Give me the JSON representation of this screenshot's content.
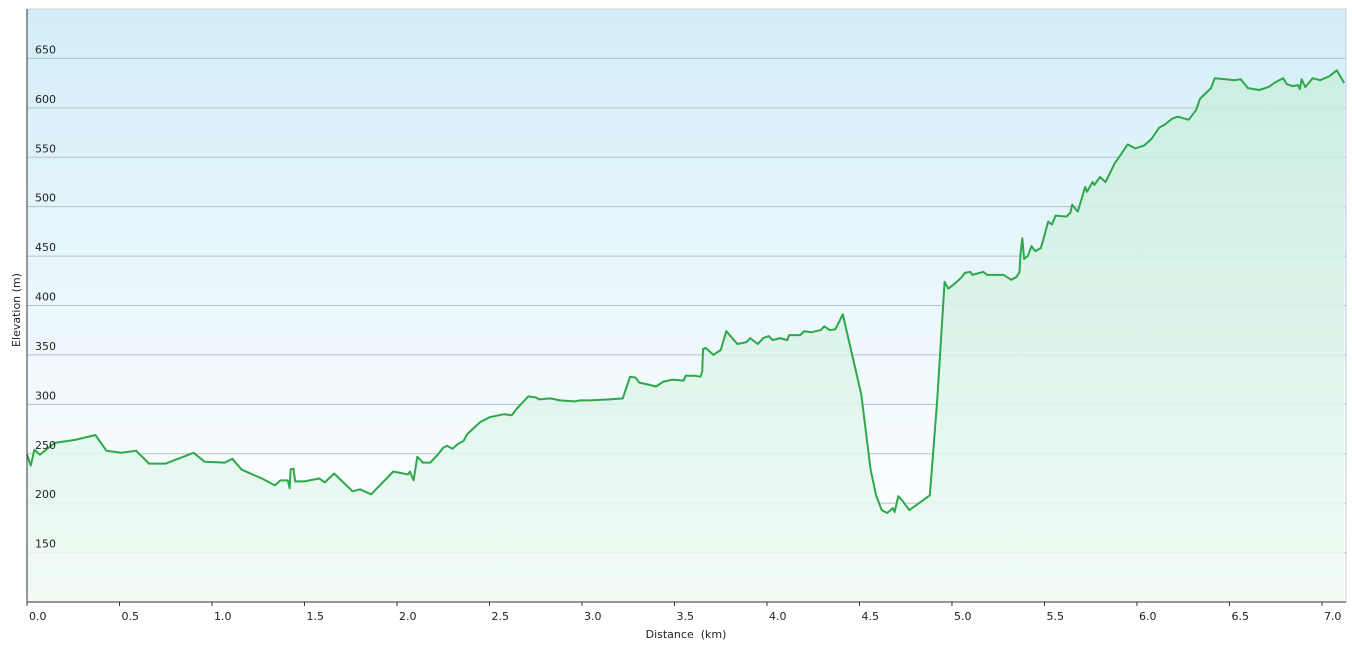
{
  "chart_data": {
    "type": "area",
    "x_label": "Distance  (km)",
    "y_label": "Elevation (m)",
    "color": "#2da84a",
    "grid": true,
    "xlim": [
      0,
      7.13
    ],
    "ylim": [
      100,
      700
    ],
    "xticks": [
      {
        "value": 0,
        "label": "0.0"
      },
      0.5,
      {
        "value": 1,
        "label": "1.0"
      },
      1.5,
      {
        "value": 2,
        "label": "2.0"
      },
      2.5,
      {
        "value": 3,
        "label": "3.0"
      },
      3.5,
      {
        "value": 4,
        "label": "4.0"
      },
      4.5,
      {
        "value": 5,
        "label": "5.0"
      },
      5.5,
      {
        "value": 6,
        "label": "6.0"
      },
      6.5,
      {
        "value": 7,
        "label": "7.0"
      }
    ],
    "yticks": [
      150,
      200,
      250,
      300,
      350,
      400,
      450,
      500,
      550,
      600,
      650
    ],
    "x": [
      0,
      0.02,
      0.04,
      0.07,
      0.15,
      0.26,
      0.37,
      0.43,
      0.51,
      0.59,
      0.66,
      0.75,
      0.9,
      0.96,
      1.07,
      1.11,
      1.16,
      1.27,
      1.34,
      1.37,
      1.41,
      1.42,
      1.425,
      1.44,
      1.45,
      1.5,
      1.58,
      1.61,
      1.66,
      1.76,
      1.8,
      1.86,
      1.98,
      2.06,
      2.07,
      2.09,
      2.11,
      2.14,
      2.18,
      2.22,
      2.25,
      2.27,
      2.3,
      2.33,
      2.36,
      2.38,
      2.45,
      2.5,
      2.58,
      2.62,
      2.65,
      2.71,
      2.75,
      2.77,
      2.83,
      2.88,
      2.96,
      2.99,
      3.04,
      3.15,
      3.22,
      3.26,
      3.29,
      3.31,
      3.36,
      3.4,
      3.44,
      3.49,
      3.55,
      3.56,
      3.61,
      3.64,
      3.65,
      3.655,
      3.67,
      3.71,
      3.75,
      3.78,
      3.84,
      3.89,
      3.91,
      3.95,
      3.98,
      4.01,
      4.03,
      4.07,
      4.11,
      4.12,
      4.18,
      4.2,
      4.24,
      4.29,
      4.31,
      4.34,
      4.37,
      4.41,
      4.51,
      4.56,
      4.59,
      4.62,
      4.65,
      4.68,
      4.69,
      4.71,
      4.73,
      4.77,
      4.88,
      4.92,
      4.96,
      4.98,
      5.02,
      5.05,
      5.07,
      5.1,
      5.11,
      5.17,
      5.19,
      5.28,
      5.32,
      5.35,
      5.365,
      5.37,
      5.38,
      5.39,
      5.41,
      5.43,
      5.45,
      5.48,
      5.5,
      5.52,
      5.54,
      5.56,
      5.62,
      5.64,
      5.65,
      5.68,
      5.72,
      5.73,
      5.76,
      5.77,
      5.8,
      5.83,
      5.88,
      5.91,
      5.95,
      5.99,
      6.04,
      6.08,
      6.12,
      6.15,
      6.19,
      6.22,
      6.28,
      6.32,
      6.34,
      6.4,
      6.42,
      6.48,
      6.53,
      6.56,
      6.6,
      6.66,
      6.71,
      6.75,
      6.79,
      6.81,
      6.84,
      6.87,
      6.88,
      6.89,
      6.91,
      6.95,
      6.99,
      7.04,
      7.08,
      7.12
    ],
    "values": [
      249,
      238,
      254,
      249,
      261,
      264,
      269,
      253,
      251,
      253,
      240,
      240,
      251,
      242,
      241,
      245,
      234,
      225,
      218,
      223,
      223,
      215,
      234,
      235,
      222,
      222,
      225,
      221,
      230,
      212,
      214,
      209,
      232,
      229,
      232,
      223,
      247,
      241,
      241,
      249,
      256,
      258,
      255,
      260,
      263,
      270,
      282,
      287,
      290,
      289,
      296,
      308,
      307,
      305,
      306,
      304,
      303,
      304,
      304,
      305,
      306,
      328,
      327,
      322,
      320,
      318,
      323,
      325,
      324,
      329,
      329,
      328,
      333,
      356,
      357,
      350,
      355,
      374,
      361,
      363,
      367,
      361,
      367,
      369,
      365,
      367,
      365,
      370,
      370,
      374,
      373,
      375,
      379,
      375,
      376,
      391,
      310,
      234,
      208,
      193,
      190,
      195,
      191,
      207,
      203,
      193,
      208,
      304,
      424,
      417,
      423,
      428,
      433,
      434,
      431,
      434,
      431,
      431,
      426,
      429,
      434,
      451,
      468,
      447,
      450,
      460,
      455,
      458,
      471,
      485,
      482,
      491,
      490,
      494,
      502,
      495,
      520,
      515,
      525,
      522,
      530,
      525,
      544,
      552,
      563,
      559,
      562,
      569,
      580,
      583,
      589,
      591,
      588,
      598,
      609,
      620,
      630,
      629,
      628,
      629,
      620,
      618,
      621,
      626,
      630,
      624,
      622,
      623,
      619,
      629,
      621,
      630,
      628,
      632,
      638,
      625
    ]
  }
}
